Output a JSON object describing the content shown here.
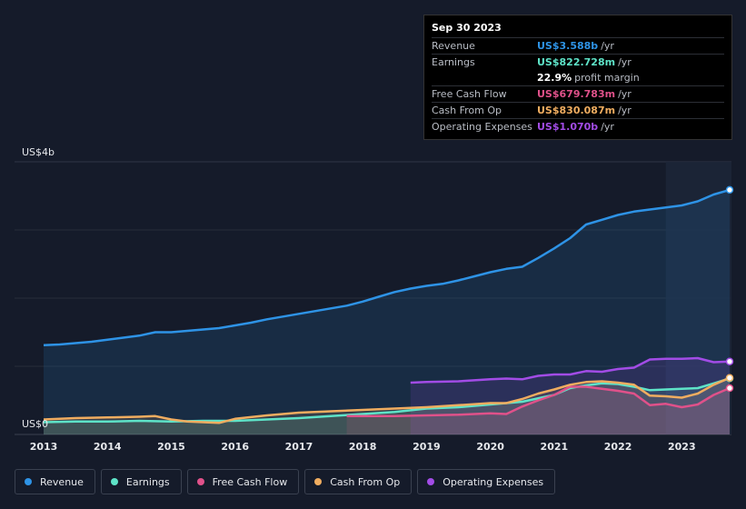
{
  "tooltip": {
    "date": "Sep 30 2023",
    "rows": [
      {
        "label": "Revenue",
        "value": "US$3.588b",
        "unit": "/yr",
        "color": "#2e93e6"
      },
      {
        "label": "Earnings",
        "value": "US$822.728m",
        "unit": "/yr",
        "color": "#5ee3c8"
      },
      {
        "label": "",
        "value": "22.9%",
        "unit": "profit margin",
        "color": "#ffffff"
      },
      {
        "label": "Free Cash Flow",
        "value": "US$679.783m",
        "unit": "/yr",
        "color": "#e0518a"
      },
      {
        "label": "Cash From Op",
        "value": "US$830.087m",
        "unit": "/yr",
        "color": "#f0ad60"
      },
      {
        "label": "Operating Expenses",
        "value": "US$1.070b",
        "unit": "/yr",
        "color": "#a24ce6"
      }
    ]
  },
  "legend": [
    {
      "label": "Revenue",
      "color": "#2e93e6"
    },
    {
      "label": "Earnings",
      "color": "#5ee3c8"
    },
    {
      "label": "Free Cash Flow",
      "color": "#e0518a"
    },
    {
      "label": "Cash From Op",
      "color": "#f0ad60"
    },
    {
      "label": "Operating Expenses",
      "color": "#a24ce6"
    }
  ],
  "chart_data": {
    "type": "area",
    "y_top_label": "US$4b",
    "y_bottom_label": "US$0",
    "ylim": [
      0,
      4
    ],
    "xlim": [
      2013,
      2023.75
    ],
    "x_ticks": [
      "2013",
      "2014",
      "2015",
      "2016",
      "2017",
      "2018",
      "2019",
      "2020",
      "2021",
      "2022",
      "2023"
    ],
    "grid": true,
    "legend_position": "bottom",
    "series": [
      {
        "name": "Revenue",
        "color": "#2e93e6",
        "x": [
          2013,
          2013.25,
          2013.5,
          2013.75,
          2014,
          2014.25,
          2014.5,
          2014.75,
          2015,
          2015.25,
          2015.5,
          2015.75,
          2016,
          2016.25,
          2016.5,
          2016.75,
          2017,
          2017.25,
          2017.5,
          2017.75,
          2018,
          2018.25,
          2018.5,
          2018.75,
          2019,
          2019.25,
          2019.5,
          2019.75,
          2020,
          2020.25,
          2020.5,
          2020.75,
          2021,
          2021.25,
          2021.5,
          2021.75,
          2022,
          2022.25,
          2022.5,
          2022.75,
          2023,
          2023.25,
          2023.5,
          2023.75
        ],
        "values": [
          1.31,
          1.32,
          1.34,
          1.36,
          1.39,
          1.42,
          1.45,
          1.5,
          1.5,
          1.52,
          1.54,
          1.56,
          1.6,
          1.64,
          1.69,
          1.73,
          1.77,
          1.81,
          1.85,
          1.89,
          1.95,
          2.02,
          2.09,
          2.14,
          2.18,
          2.21,
          2.26,
          2.32,
          2.38,
          2.43,
          2.46,
          2.59,
          2.73,
          2.88,
          3.08,
          3.15,
          3.22,
          3.27,
          3.3,
          3.33,
          3.36,
          3.42,
          3.52,
          3.588
        ]
      },
      {
        "name": "Earnings",
        "color": "#5ee3c8",
        "x": [
          2013,
          2013.5,
          2014,
          2014.5,
          2015,
          2015.5,
          2016,
          2016.5,
          2017,
          2017.5,
          2018,
          2018.5,
          2019,
          2019.5,
          2020,
          2020.5,
          2021,
          2021.25,
          2021.5,
          2021.75,
          2022,
          2022.25,
          2022.5,
          2023,
          2023.25,
          2023.5,
          2023.75
        ],
        "values": [
          0.18,
          0.19,
          0.19,
          0.2,
          0.19,
          0.2,
          0.2,
          0.22,
          0.24,
          0.27,
          0.3,
          0.33,
          0.38,
          0.4,
          0.44,
          0.48,
          0.58,
          0.68,
          0.72,
          0.75,
          0.74,
          0.7,
          0.65,
          0.67,
          0.68,
          0.75,
          0.822728
        ]
      },
      {
        "name": "Free Cash Flow",
        "color": "#e0518a",
        "x": [
          2017.75,
          2018,
          2018.5,
          2019,
          2019.5,
          2020,
          2020.25,
          2020.5,
          2020.75,
          2021,
          2021.25,
          2021.5,
          2021.75,
          2022,
          2022.25,
          2022.5,
          2022.75,
          2023,
          2023.25,
          2023.5,
          2023.75
        ],
        "values": [
          0.27,
          0.27,
          0.27,
          0.28,
          0.29,
          0.31,
          0.3,
          0.41,
          0.5,
          0.58,
          0.7,
          0.7,
          0.67,
          0.64,
          0.6,
          0.43,
          0.45,
          0.4,
          0.44,
          0.58,
          0.679783
        ]
      },
      {
        "name": "Cash From Op",
        "color": "#f0ad60",
        "x": [
          2013,
          2013.5,
          2014,
          2014.5,
          2014.75,
          2015,
          2015.25,
          2015.5,
          2015.75,
          2016,
          2016.5,
          2017,
          2017.5,
          2018,
          2018.5,
          2019,
          2019.5,
          2020,
          2020.25,
          2020.5,
          2020.75,
          2021,
          2021.25,
          2021.5,
          2021.75,
          2022,
          2022.25,
          2022.5,
          2022.75,
          2023,
          2023.25,
          2023.5,
          2023.75
        ],
        "values": [
          0.22,
          0.24,
          0.25,
          0.26,
          0.27,
          0.22,
          0.19,
          0.18,
          0.17,
          0.23,
          0.28,
          0.32,
          0.34,
          0.36,
          0.38,
          0.4,
          0.43,
          0.46,
          0.46,
          0.52,
          0.6,
          0.66,
          0.73,
          0.77,
          0.78,
          0.76,
          0.73,
          0.57,
          0.56,
          0.54,
          0.6,
          0.73,
          0.830087
        ]
      },
      {
        "name": "Operating Expenses",
        "color": "#a24ce6",
        "x": [
          2018.75,
          2019,
          2019.5,
          2020,
          2020.25,
          2020.5,
          2020.75,
          2021,
          2021.25,
          2021.5,
          2021.75,
          2022,
          2022.25,
          2022.5,
          2022.75,
          2023,
          2023.25,
          2023.5,
          2023.75
        ],
        "values": [
          0.76,
          0.77,
          0.78,
          0.81,
          0.82,
          0.81,
          0.86,
          0.88,
          0.88,
          0.93,
          0.92,
          0.96,
          0.98,
          1.1,
          1.11,
          1.11,
          1.12,
          1.06,
          1.07
        ]
      }
    ],
    "highlight_from_x": 2022.75
  }
}
